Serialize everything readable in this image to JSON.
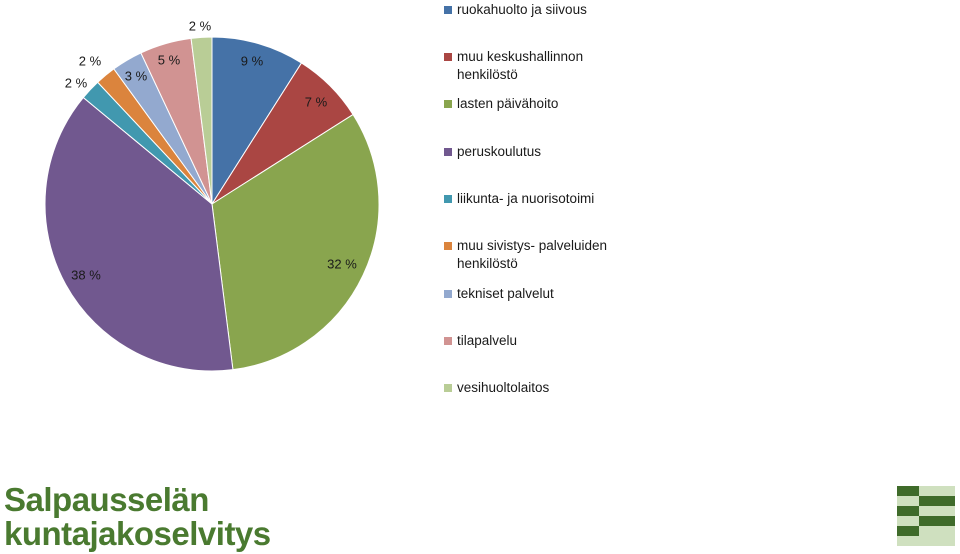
{
  "chart_data": {
    "type": "pie",
    "categories": [
      "ruokahuolto ja siivous",
      "muu keskushallinnon henkilöstö",
      "lasten päivähoito",
      "peruskoulutus",
      "liikunta- ja nuorisotoimi",
      "muu sivistys- palveluiden henkilöstö",
      "tekniset palvelut",
      "tilapalvelu",
      "vesihuoltolaitos"
    ],
    "values": [
      9,
      7,
      32,
      38,
      2,
      2,
      3,
      5,
      2
    ],
    "data_labels": [
      "9 %",
      "7 %",
      "32 %",
      "38 %",
      "2 %",
      "2 %",
      "3 %",
      "5 %",
      "2 %"
    ],
    "colors": [
      "#4572a7",
      "#aa4643",
      "#89a54e",
      "#71588f",
      "#4198af",
      "#db843d",
      "#93a9cf",
      "#d19392",
      "#b9cd96"
    ],
    "legend_position": "right",
    "title": ""
  },
  "legend": {
    "items": [
      {
        "label": "ruokahuolto ja siivous",
        "color": "#4572a7"
      },
      {
        "label": "muu keskushallinnon henkilöstö",
        "color": "#aa4643"
      },
      {
        "label": "lasten päivähoito",
        "color": "#89a54e"
      },
      {
        "label": "peruskoulutus",
        "color": "#71588f"
      },
      {
        "label": "liikunta- ja nuorisotoimi",
        "color": "#4198af"
      },
      {
        "label": "muu sivistys- palveluiden henkilöstö",
        "color": "#db843d"
      },
      {
        "label": "tekniset palvelut",
        "color": "#93a9cf"
      },
      {
        "label": "tilapalvelu",
        "color": "#d19392"
      },
      {
        "label": "vesihuoltolaitos",
        "color": "#b9cd96"
      }
    ]
  },
  "footer": {
    "brand_line1": "Salpausselän",
    "brand_line2": "kuntajakoselvitys",
    "brand_color": "#4a7a30",
    "logo_dark": "#3f6b2a",
    "logo_light": "#cfe0bf"
  }
}
